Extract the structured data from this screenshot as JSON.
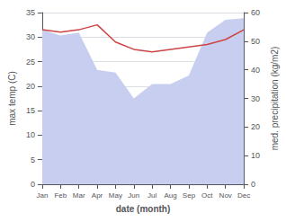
{
  "chart_data": {
    "type": "line",
    "xlabel": "date (month)",
    "ylabel": "max temp (C)",
    "y2label": "med. precipitation (kg/m2)",
    "categories": [
      "Jan",
      "Feb",
      "Mar",
      "Apr",
      "May",
      "Jun",
      "Jul",
      "Aug",
      "Sep",
      "Oct",
      "Nov",
      "Dec"
    ],
    "series": [
      {
        "type": "area",
        "axis": "y2",
        "color": "#c8cef0",
        "values": [
          54.0,
          52.0,
          53.0,
          40.0,
          39.0,
          30.0,
          35.0,
          35.0,
          38.0,
          53.0,
          57.5,
          58.0
        ]
      },
      {
        "type": "line",
        "color": "#cc4444",
        "values": [
          31.5,
          31.0,
          31.5,
          32.5,
          29.0,
          27.5,
          27.0,
          27.5,
          28.0,
          28.5,
          29.5,
          31.5
        ]
      }
    ],
    "ylim": [
      0,
      35
    ],
    "yticks": [
      0,
      5,
      10,
      15,
      20,
      25,
      30,
      35
    ],
    "y2lim": [
      0,
      60
    ],
    "y2ticks": [
      0,
      10,
      20,
      30,
      40,
      50,
      60
    ],
    "grid": true
  }
}
